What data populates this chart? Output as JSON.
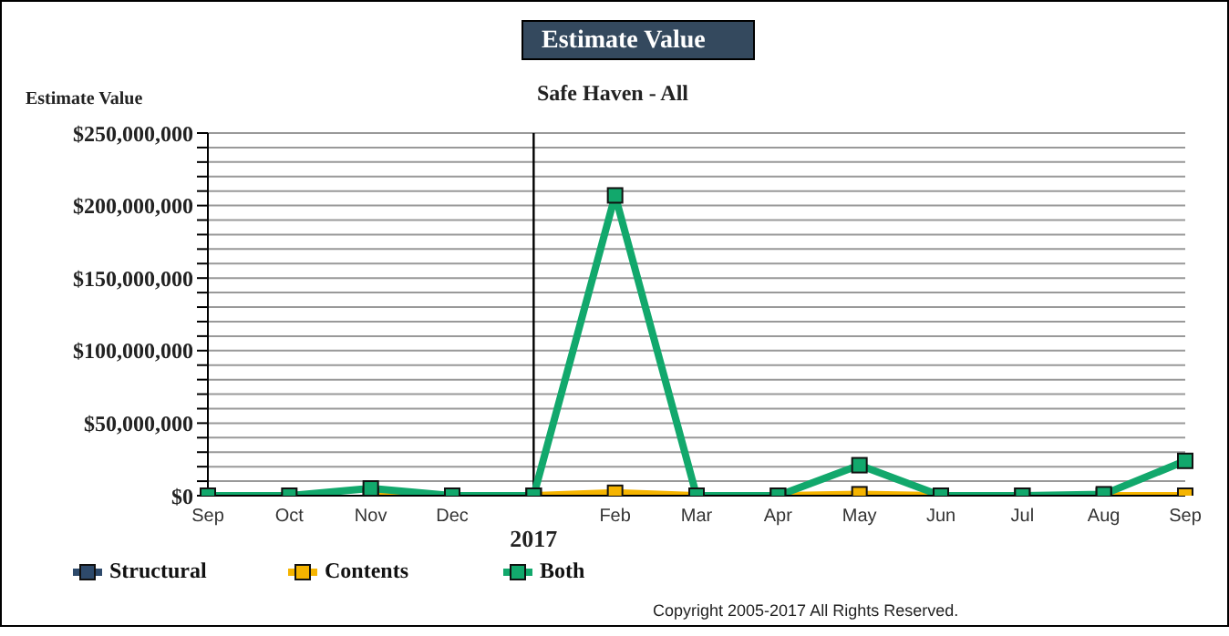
{
  "chart_data": {
    "type": "line",
    "title": "Estimate Value",
    "subtitle": "Safe Haven - All",
    "ylabel": "Estimate Value",
    "categories": [
      "Sep",
      "Oct",
      "Nov",
      "Dec",
      "2017",
      "Feb",
      "Mar",
      "Apr",
      "May",
      "Jun",
      "Jul",
      "Aug",
      "Sep"
    ],
    "series": [
      {
        "name": "Structural",
        "color": "#2e4a6b",
        "values": [
          null,
          null,
          null,
          null,
          null,
          null,
          null,
          null,
          null,
          null,
          null,
          null,
          null
        ]
      },
      {
        "name": "Contents",
        "color": "#f5b400",
        "values": [
          null,
          null,
          0,
          0,
          0,
          2000000,
          0,
          0,
          1000000,
          0,
          0,
          0,
          0
        ]
      },
      {
        "name": "Both",
        "color": "#12a86c",
        "values": [
          0,
          0,
          5000000,
          0,
          0,
          207000000,
          0,
          0,
          21000000,
          0,
          0,
          1000000,
          24000000
        ]
      }
    ],
    "ylim": [
      0,
      250000000
    ],
    "yticks": [
      {
        "value": 0,
        "label": "$0"
      },
      {
        "value": 10000000,
        "label": null
      },
      {
        "value": 20000000,
        "label": null
      },
      {
        "value": 30000000,
        "label": null
      },
      {
        "value": 40000000,
        "label": null
      },
      {
        "value": 50000000,
        "label": "$50,000,000"
      },
      {
        "value": 60000000,
        "label": null
      },
      {
        "value": 70000000,
        "label": null
      },
      {
        "value": 80000000,
        "label": null
      },
      {
        "value": 90000000,
        "label": null
      },
      {
        "value": 100000000,
        "label": "$100,000,000"
      },
      {
        "value": 110000000,
        "label": null
      },
      {
        "value": 120000000,
        "label": null
      },
      {
        "value": 130000000,
        "label": null
      },
      {
        "value": 140000000,
        "label": null
      },
      {
        "value": 150000000,
        "label": "$150,000,000"
      },
      {
        "value": 160000000,
        "label": null
      },
      {
        "value": 170000000,
        "label": null
      },
      {
        "value": 180000000,
        "label": null
      },
      {
        "value": 190000000,
        "label": null
      },
      {
        "value": 200000000,
        "label": "$200,000,000"
      },
      {
        "value": 210000000,
        "label": null
      },
      {
        "value": 220000000,
        "label": null
      },
      {
        "value": 230000000,
        "label": null
      },
      {
        "value": 240000000,
        "label": null
      },
      {
        "value": 250000000,
        "label": "$250,000,000"
      }
    ],
    "ref_lines": [
      {
        "axis": "x",
        "value": "2017",
        "color": "#000000"
      }
    ],
    "grid": "y",
    "legend": "bottom left",
    "marker": "square",
    "line_style": "solid",
    "annotations": [
      "Copyright 2005-2017 All Rights Reserved."
    ]
  }
}
